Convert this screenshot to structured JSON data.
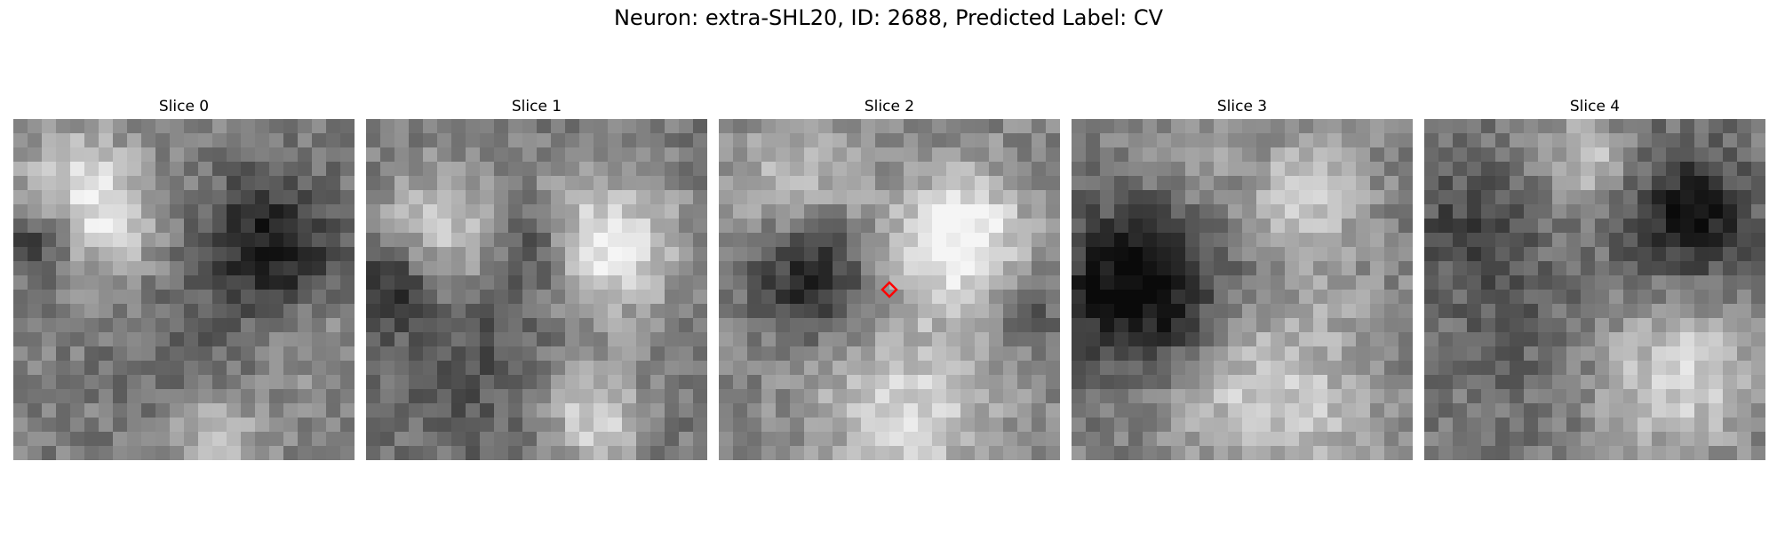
{
  "figure": {
    "title": "Neuron: extra-SHL20, ID: 2688, Predicted Label: CV"
  },
  "panels": [
    {
      "title": "Slice 0"
    },
    {
      "title": "Slice 1"
    },
    {
      "title": "Slice 2"
    },
    {
      "title": "Slice 3"
    },
    {
      "title": "Slice 4"
    }
  ],
  "marker": {
    "panel_index": 2,
    "shape": "diamond",
    "color": "#ff0000"
  },
  "colormap": "gray"
}
